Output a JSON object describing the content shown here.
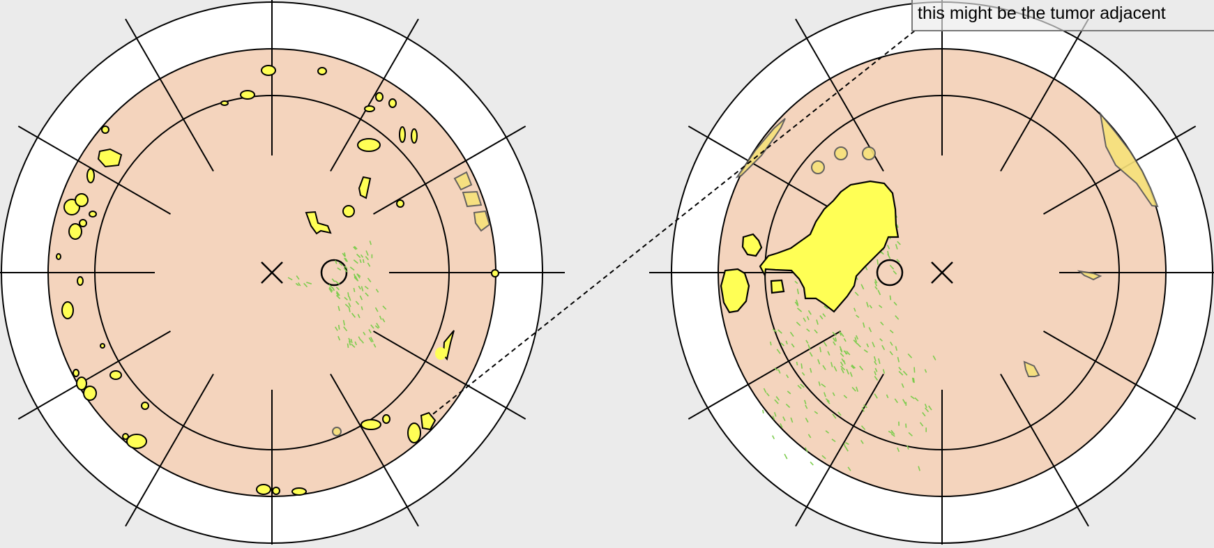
{
  "annotation": {
    "text": "this might be the tumor adjacent"
  },
  "colors": {
    "background": "#ebebeb",
    "zone": "#f4d4bd",
    "ring": "#ffffff",
    "outline": "#000000",
    "lesion": "#ffff55",
    "lesion_faded": "#f7e27a",
    "vessel_dash": "#7ccc4d"
  },
  "panels": [
    {
      "name": "left-retina-diagram",
      "fovea_marker": "cross",
      "optic_disc_marker": "circle"
    },
    {
      "name": "right-retina-diagram",
      "fovea_marker": "cross",
      "optic_disc_marker": "circle"
    }
  ]
}
